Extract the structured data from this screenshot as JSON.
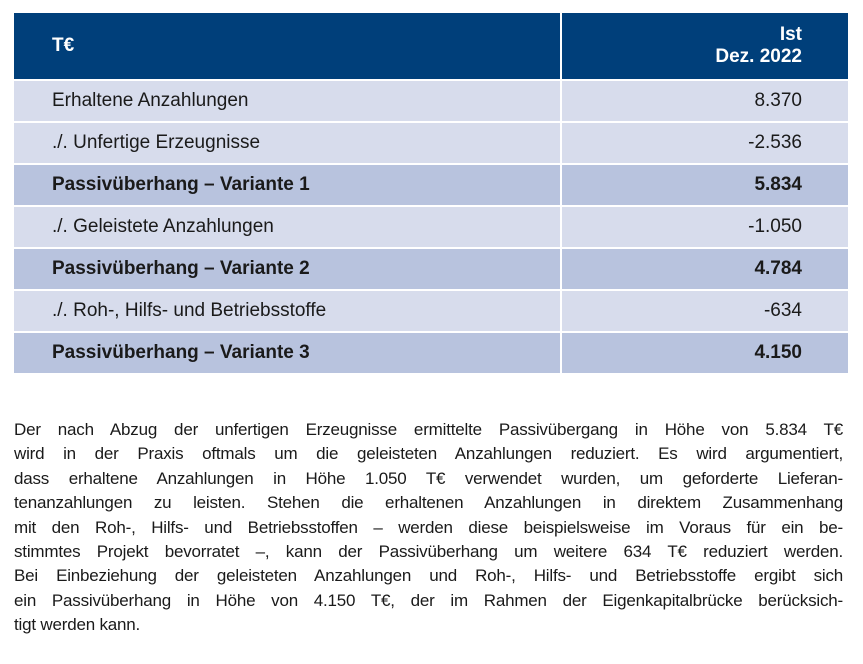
{
  "table": {
    "header": {
      "label": "T€",
      "col_line1": "Ist",
      "col_line2": "Dez. 2022"
    },
    "rows": [
      {
        "label": "Erhaltene Anzahlungen",
        "value": "8.370",
        "bold": false
      },
      {
        "label": "./. Unfertige Erzeugnisse",
        "value": "-2.536",
        "bold": false
      },
      {
        "label": "Passivüberhang – Variante 1",
        "value": "5.834",
        "bold": true
      },
      {
        "label": "./. Geleistete Anzahlungen",
        "value": "-1.050",
        "bold": false
      },
      {
        "label": "Passivüberhang – Variante 2",
        "value": "4.784",
        "bold": true
      },
      {
        "label": "./. Roh-, Hilfs- und Betriebsstoffe",
        "value": "-634",
        "bold": false
      },
      {
        "label": "Passivüberhang – Variante 3",
        "value": "4.150",
        "bold": true
      }
    ]
  },
  "paragraph": [
    "Der nach Abzug der unfertigen Erzeugnisse ermittelte Passivübergang in Höhe von 5.834 T€",
    "wird in der Praxis oftmals um die geleisteten Anzahlungen reduziert. Es wird argumentiert,",
    "dass erhaltene Anzahlungen in Höhe 1.050 T€ verwendet wurden, um geforderte Lieferan-",
    "tenanzahlungen zu leisten. Stehen die erhaltenen Anzahlungen in direktem Zusammenhang",
    "mit den Roh-, Hilfs- und Betriebsstoffen – werden diese beispielsweise im Voraus für ein be-",
    "stimmtes Projekt bevorratet –, kann der Passivüberhang um weitere 634 T€ reduziert werden.",
    "Bei Einbeziehung der geleisteten Anzahlungen und Roh-, Hilfs- und Betriebsstoffe ergibt sich",
    "ein Passivüberhang in Höhe von 4.150 T€, der im Rahmen der Eigenkapitalbrücke berücksich-",
    "tigt werden kann."
  ]
}
